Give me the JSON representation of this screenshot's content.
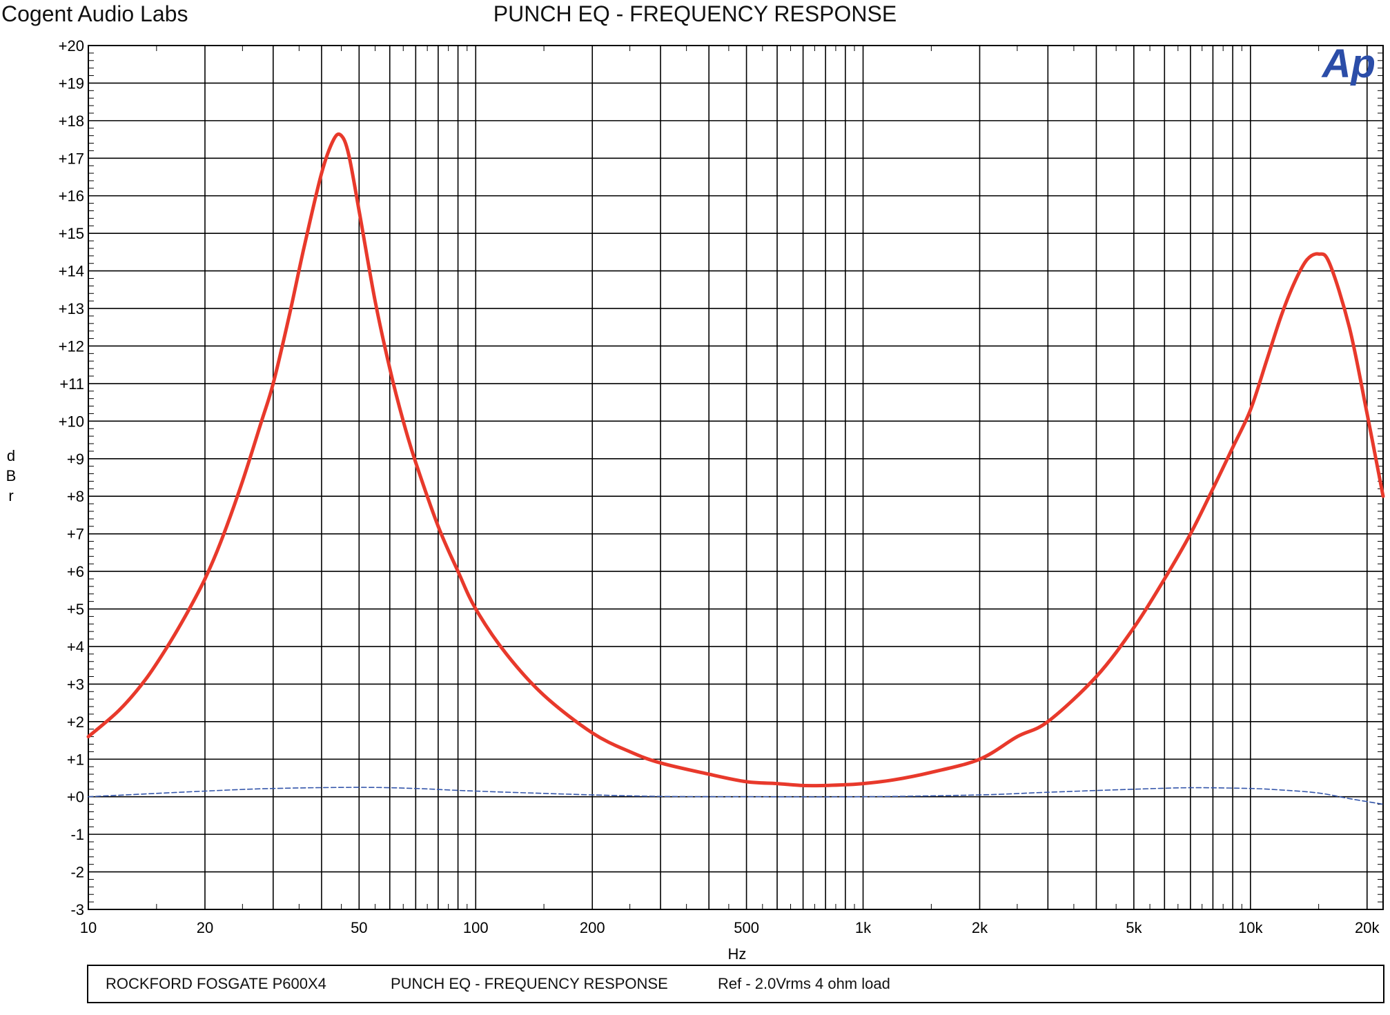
{
  "header": {
    "company": "Cogent Audio Labs",
    "title": "PUNCH EQ  -  FREQUENCY RESPONSE"
  },
  "logo": {
    "text": "Ap",
    "color": "#2b4da8"
  },
  "footer": {
    "model": "ROCKFORD FOSGATE P600X4",
    "title": "PUNCH EQ  -  FREQUENCY RESPONSE",
    "ref": "Ref - 2.0Vrms    4 ohm load"
  },
  "chart_data": {
    "type": "line",
    "title": "PUNCH EQ  -  FREQUENCY RESPONSE",
    "xlabel": "Hz",
    "ylabel": "dBr",
    "xscale": "log",
    "xlim": [
      10,
      22000
    ],
    "ylim": [
      -3,
      20
    ],
    "grid": true,
    "x_ticks": [
      {
        "value": 10,
        "label": "10"
      },
      {
        "value": 20,
        "label": "20"
      },
      {
        "value": 50,
        "label": "50"
      },
      {
        "value": 100,
        "label": "100"
      },
      {
        "value": 200,
        "label": "200"
      },
      {
        "value": 500,
        "label": "500"
      },
      {
        "value": 1000,
        "label": "1k"
      },
      {
        "value": 2000,
        "label": "2k"
      },
      {
        "value": 5000,
        "label": "5k"
      },
      {
        "value": 10000,
        "label": "10k"
      },
      {
        "value": 20000,
        "label": "20k"
      }
    ],
    "y_ticks": [
      {
        "value": 20,
        "label": "+20"
      },
      {
        "value": 19,
        "label": "+19"
      },
      {
        "value": 18,
        "label": "+18"
      },
      {
        "value": 17,
        "label": "+17"
      },
      {
        "value": 16,
        "label": "+16"
      },
      {
        "value": 15,
        "label": "+15"
      },
      {
        "value": 14,
        "label": "+14"
      },
      {
        "value": 13,
        "label": "+13"
      },
      {
        "value": 12,
        "label": "+12"
      },
      {
        "value": 11,
        "label": "+11"
      },
      {
        "value": 10,
        "label": "+10"
      },
      {
        "value": 9,
        "label": "+9"
      },
      {
        "value": 8,
        "label": "+8"
      },
      {
        "value": 7,
        "label": "+7"
      },
      {
        "value": 6,
        "label": "+6"
      },
      {
        "value": 5,
        "label": "+5"
      },
      {
        "value": 4,
        "label": "+4"
      },
      {
        "value": 3,
        "label": "+3"
      },
      {
        "value": 2,
        "label": "+2"
      },
      {
        "value": 1,
        "label": "+1"
      },
      {
        "value": 0,
        "label": "+0"
      },
      {
        "value": -1,
        "label": "-1"
      },
      {
        "value": -2,
        "label": "-2"
      },
      {
        "value": -3,
        "label": "-3"
      }
    ],
    "series": [
      {
        "color": "#e8392b",
        "style": "solid",
        "x": [
          10,
          12,
          14,
          16,
          18,
          20,
          22,
          25,
          28,
          30,
          33,
          36,
          40,
          43,
          45,
          47,
          50,
          55,
          60,
          65,
          70,
          80,
          90,
          100,
          120,
          150,
          200,
          250,
          300,
          400,
          500,
          600,
          700,
          800,
          900,
          1000,
          1200,
          1500,
          2000,
          2500,
          3000,
          4000,
          5000,
          6000,
          7000,
          8000,
          9000,
          10000,
          11000,
          12000,
          13000,
          14000,
          15000,
          16000,
          18000,
          20000,
          22000
        ],
        "y": [
          1.6,
          2.3,
          3.1,
          4.0,
          4.9,
          5.8,
          6.8,
          8.4,
          10.0,
          11.0,
          12.8,
          14.6,
          16.6,
          17.5,
          17.6,
          17.1,
          15.6,
          13.2,
          11.4,
          10.0,
          8.9,
          7.2,
          6.0,
          5.0,
          3.8,
          2.7,
          1.7,
          1.2,
          0.9,
          0.6,
          0.4,
          0.35,
          0.3,
          0.3,
          0.32,
          0.35,
          0.45,
          0.65,
          1.0,
          1.6,
          2.0,
          3.2,
          4.5,
          5.8,
          7.0,
          8.2,
          9.3,
          10.3,
          11.6,
          12.8,
          13.7,
          14.3,
          14.45,
          14.2,
          12.5,
          10.2,
          8.0
        ]
      },
      {
        "color": "#3355aa",
        "style": "dashed",
        "x": [
          10,
          20,
          30,
          50,
          70,
          100,
          200,
          300,
          500,
          1000,
          2000,
          3000,
          5000,
          7000,
          10000,
          12000,
          15000,
          18000,
          22000
        ],
        "y": [
          0.0,
          0.15,
          0.22,
          0.25,
          0.22,
          0.15,
          0.05,
          0.01,
          0.0,
          0.0,
          0.05,
          0.12,
          0.2,
          0.24,
          0.22,
          0.18,
          0.1,
          -0.05,
          -0.2
        ]
      }
    ]
  }
}
